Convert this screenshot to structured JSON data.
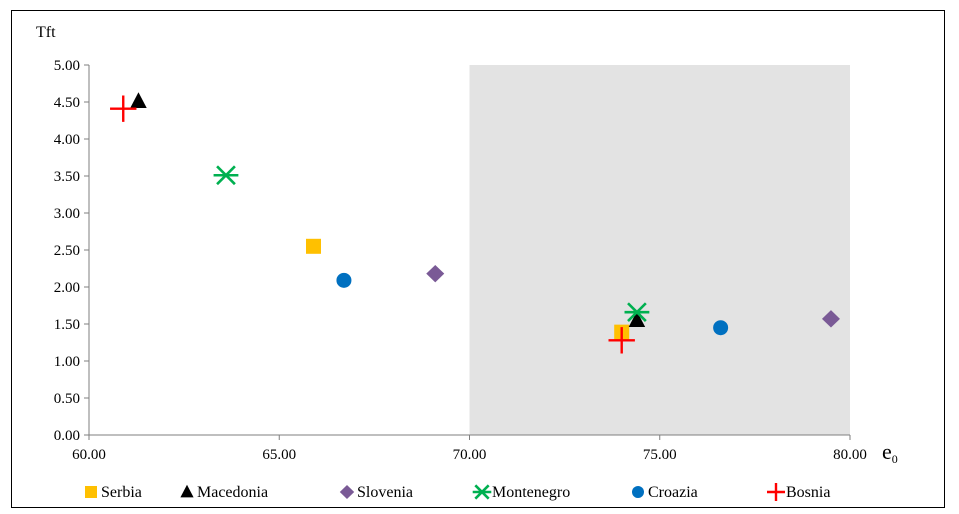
{
  "chart_data": {
    "type": "scatter",
    "ylabel": "Tft",
    "xlabel": "e",
    "xlabel_subscript": "0",
    "xlim": [
      60,
      80
    ],
    "ylim": [
      0,
      5
    ],
    "x_ticks": [
      "60.00",
      "65.00",
      "70.00",
      "75.00",
      "80.00"
    ],
    "x_tick_values": [
      60,
      65,
      70,
      75,
      80
    ],
    "y_ticks": [
      "0.00",
      "0.50",
      "1.00",
      "1.50",
      "2.00",
      "2.50",
      "3.00",
      "3.50",
      "4.00",
      "4.50",
      "5.00"
    ],
    "y_tick_values": [
      0,
      0.5,
      1,
      1.5,
      2,
      2.5,
      3,
      3.5,
      4,
      4.5,
      5
    ],
    "grid": false,
    "shaded_region": {
      "x_from": 70,
      "x_to": 80,
      "color": "#e3e3e3"
    },
    "legend_position": "bottom",
    "series": [
      {
        "name": "Serbia",
        "marker": "square",
        "color": "#ffc000",
        "points": [
          [
            65.9,
            2.55
          ],
          [
            74.0,
            1.39
          ]
        ]
      },
      {
        "name": "Macedonia",
        "marker": "triangle",
        "color": "#000000",
        "points": [
          [
            61.3,
            4.51
          ],
          [
            74.4,
            1.55
          ]
        ]
      },
      {
        "name": "Slovenia",
        "marker": "diamond",
        "color": "#7a5a96",
        "points": [
          [
            69.1,
            2.18
          ],
          [
            79.5,
            1.57
          ]
        ]
      },
      {
        "name": "Montenegro",
        "marker": "asterisk",
        "color": "#00b050",
        "points": [
          [
            63.6,
            3.51
          ],
          [
            74.4,
            1.66
          ]
        ]
      },
      {
        "name": "Croazia",
        "marker": "circle",
        "color": "#0070c0",
        "points": [
          [
            66.7,
            2.09
          ],
          [
            76.6,
            1.45
          ]
        ]
      },
      {
        "name": "Bosnia",
        "marker": "plus",
        "color": "#ff0000",
        "points": [
          [
            60.9,
            4.41
          ],
          [
            74.0,
            1.28
          ]
        ]
      }
    ]
  }
}
